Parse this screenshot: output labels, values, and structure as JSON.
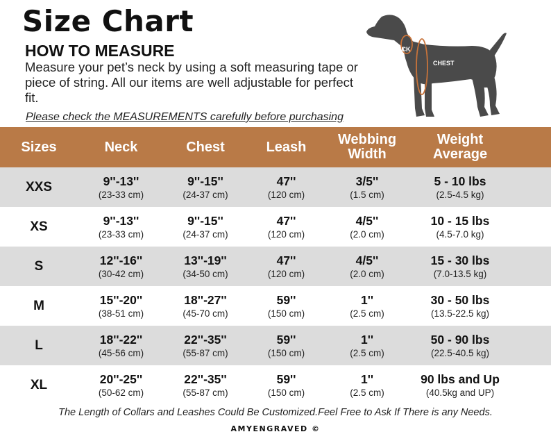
{
  "title": "Size Chart",
  "subtitle": "HOW TO MEASURE",
  "description": "Measure your pet’s neck by using a soft measuring tape or piece of string. All our items are well adjustable for perfect fit.",
  "note": "Please check the MEASUREMENTS carefully before purchasing",
  "illustration": {
    "neck_label": "NECK",
    "chest_label": "CHEST"
  },
  "colors": {
    "header": "#b97a47",
    "row_shade": "#dcdcdc",
    "row_plain": "#ffffff",
    "measure_line": "#c8733a",
    "dog": "#4a4a4a"
  },
  "table": {
    "headers": [
      "Sizes",
      "Neck",
      "Chest",
      "Leash",
      "Webbing Width",
      "Weight Average"
    ],
    "rows": [
      {
        "size": "XXS",
        "neck": [
          "9''-13''",
          "(23-33 cm)"
        ],
        "chest": [
          "9''-15''",
          "(24-37 cm)"
        ],
        "leash": [
          "47''",
          "(120 cm)"
        ],
        "webbing": [
          "3/5''",
          "(1.5 cm)"
        ],
        "weight": [
          "5 - 10 lbs",
          "(2.5-4.5 kg)"
        ]
      },
      {
        "size": "XS",
        "neck": [
          "9''-13''",
          "(23-33 cm)"
        ],
        "chest": [
          "9''-15''",
          "(24-37 cm)"
        ],
        "leash": [
          "47''",
          "(120 cm)"
        ],
        "webbing": [
          "4/5''",
          "(2.0 cm)"
        ],
        "weight": [
          "10 - 15 lbs",
          "(4.5-7.0 kg)"
        ]
      },
      {
        "size": "S",
        "neck": [
          "12''-16''",
          "(30-42 cm)"
        ],
        "chest": [
          "13''-19''",
          "(34-50 cm)"
        ],
        "leash": [
          "47''",
          "(120 cm)"
        ],
        "webbing": [
          "4/5''",
          "(2.0 cm)"
        ],
        "weight": [
          "15 - 30 lbs",
          "(7.0-13.5 kg)"
        ]
      },
      {
        "size": "M",
        "neck": [
          "15''-20''",
          "(38-51 cm)"
        ],
        "chest": [
          "18''-27''",
          "(45-70 cm)"
        ],
        "leash": [
          "59''",
          "(150 cm)"
        ],
        "webbing": [
          "1''",
          "(2.5 cm)"
        ],
        "weight": [
          "30 - 50 lbs",
          "(13.5-22.5 kg)"
        ]
      },
      {
        "size": "L",
        "neck": [
          "18''-22''",
          "(45-56 cm)"
        ],
        "chest": [
          "22''-35''",
          "(55-87 cm)"
        ],
        "leash": [
          "59''",
          "(150 cm)"
        ],
        "webbing": [
          "1''",
          "(2.5 cm)"
        ],
        "weight": [
          "50 - 90 lbs",
          "(22.5-40.5 kg)"
        ]
      },
      {
        "size": "XL",
        "neck": [
          "20''-25''",
          "(50-62 cm)"
        ],
        "chest": [
          "22''-35''",
          "(55-87 cm)"
        ],
        "leash": [
          "59''",
          "(150 cm)"
        ],
        "webbing": [
          "1''",
          "(2.5 cm)"
        ],
        "weight": [
          "90 lbs and Up",
          "(40.5kg and UP)"
        ]
      }
    ]
  },
  "footer": "The Length of Collars and Leashes Could Be Customized.Feel Free to Ask If There is any Needs.",
  "brand": "AMYENGRAVED ©"
}
